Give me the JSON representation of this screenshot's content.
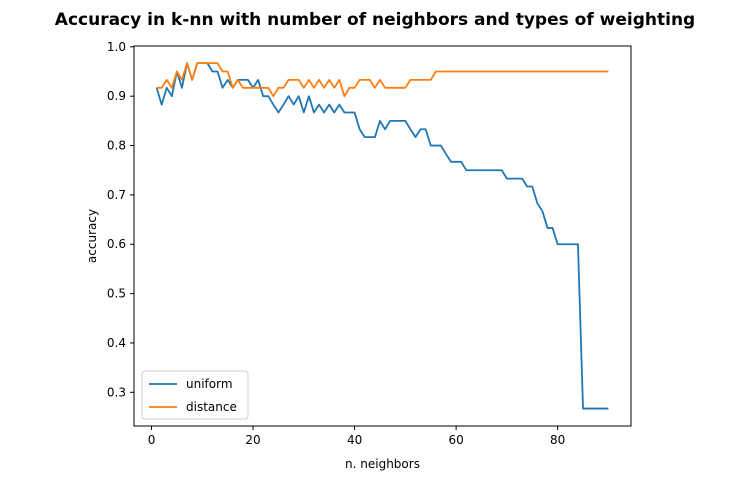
{
  "chart_data": {
    "type": "line",
    "title": "Accuracy in k-nn with number of neighbors and types of weighting",
    "xlabel": "n. neighbors",
    "ylabel": "accuracy",
    "xlim": [
      -3.45,
      94.45
    ],
    "ylim": [
      0.2317,
      1.0017
    ],
    "xticks": [
      0,
      20,
      40,
      60,
      80
    ],
    "yticks": [
      0.3,
      0.4,
      0.5,
      0.6,
      0.7,
      0.8,
      0.9,
      1.0
    ],
    "xtick_labels": [
      "0",
      "20",
      "40",
      "60",
      "80"
    ],
    "ytick_labels": [
      "0.3",
      "0.4",
      "0.5",
      "0.6",
      "0.7",
      "0.8",
      "0.9",
      "1.0"
    ],
    "grid": false,
    "legend_position": "lower-left",
    "x": [
      1,
      2,
      3,
      4,
      5,
      6,
      7,
      8,
      9,
      10,
      11,
      12,
      13,
      14,
      15,
      16,
      17,
      18,
      19,
      20,
      21,
      22,
      23,
      24,
      25,
      26,
      27,
      28,
      29,
      30,
      31,
      32,
      33,
      34,
      35,
      36,
      37,
      38,
      39,
      40,
      41,
      42,
      43,
      44,
      45,
      46,
      47,
      48,
      49,
      50,
      51,
      52,
      53,
      54,
      55,
      56,
      57,
      58,
      59,
      60,
      61,
      62,
      63,
      64,
      65,
      66,
      67,
      68,
      69,
      70,
      71,
      72,
      73,
      74,
      75,
      76,
      77,
      78,
      79,
      80,
      81,
      82,
      83,
      84,
      85,
      86,
      87,
      88,
      89,
      90
    ],
    "series": [
      {
        "name": "uniform",
        "color": "#1f77b4",
        "values": [
          0.917,
          0.883,
          0.917,
          0.9,
          0.95,
          0.917,
          0.967,
          0.933,
          0.967,
          0.967,
          0.967,
          0.95,
          0.95,
          0.917,
          0.933,
          0.917,
          0.933,
          0.933,
          0.933,
          0.917,
          0.933,
          0.9,
          0.9,
          0.883,
          0.867,
          0.883,
          0.9,
          0.883,
          0.9,
          0.867,
          0.9,
          0.867,
          0.883,
          0.867,
          0.883,
          0.867,
          0.883,
          0.867,
          0.867,
          0.867,
          0.833,
          0.817,
          0.817,
          0.817,
          0.85,
          0.833,
          0.85,
          0.85,
          0.85,
          0.85,
          0.833,
          0.817,
          0.833,
          0.833,
          0.8,
          0.8,
          0.8,
          0.783,
          0.767,
          0.767,
          0.767,
          0.75,
          0.75,
          0.75,
          0.75,
          0.75,
          0.75,
          0.75,
          0.75,
          0.733,
          0.733,
          0.733,
          0.733,
          0.717,
          0.717,
          0.683,
          0.667,
          0.633,
          0.633,
          0.6,
          0.6,
          0.6,
          0.6,
          0.6,
          0.267,
          0.267,
          0.267,
          0.267,
          0.267,
          0.267
        ]
      },
      {
        "name": "distance",
        "color": "#ff7f0e",
        "values": [
          0.917,
          0.917,
          0.933,
          0.917,
          0.95,
          0.933,
          0.967,
          0.933,
          0.967,
          0.967,
          0.967,
          0.967,
          0.967,
          0.95,
          0.95,
          0.917,
          0.933,
          0.917,
          0.917,
          0.917,
          0.917,
          0.917,
          0.917,
          0.9,
          0.917,
          0.917,
          0.933,
          0.933,
          0.933,
          0.917,
          0.933,
          0.917,
          0.933,
          0.917,
          0.933,
          0.917,
          0.933,
          0.9,
          0.917,
          0.917,
          0.933,
          0.933,
          0.933,
          0.917,
          0.933,
          0.917,
          0.917,
          0.917,
          0.917,
          0.917,
          0.933,
          0.933,
          0.933,
          0.933,
          0.933,
          0.95,
          0.95,
          0.95,
          0.95,
          0.95,
          0.95,
          0.95,
          0.95,
          0.95,
          0.95,
          0.95,
          0.95,
          0.95,
          0.95,
          0.95,
          0.95,
          0.95,
          0.95,
          0.95,
          0.95,
          0.95,
          0.95,
          0.95,
          0.95,
          0.95,
          0.95,
          0.95,
          0.95,
          0.95,
          0.95,
          0.95,
          0.95,
          0.95,
          0.95,
          0.95
        ]
      }
    ]
  }
}
